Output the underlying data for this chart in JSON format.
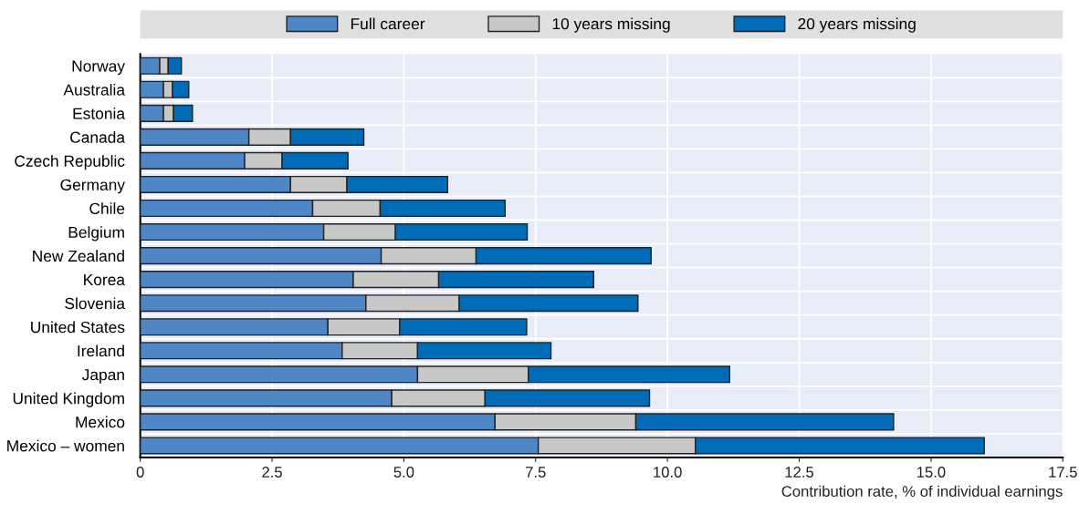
{
  "chart_data": {
    "type": "bar",
    "orientation": "horizontal",
    "stacked": true,
    "categories": [
      "Norway",
      "Australia",
      "Estonia",
      "Canada",
      "Czech Republic",
      "Germany",
      "Chile",
      "Belgium",
      "New Zealand",
      "Korea",
      "Slovenia",
      "United States",
      "Ireland",
      "Japan",
      "United Kingdom",
      "Mexico",
      "Mexico – women"
    ],
    "series": [
      {
        "name": "Full career",
        "color": "#4f86c6",
        "values": [
          0.37,
          0.44,
          0.44,
          2.06,
          1.98,
          2.85,
          3.27,
          3.48,
          4.57,
          4.04,
          4.28,
          3.56,
          3.83,
          5.26,
          4.77,
          6.73,
          7.55
        ]
      },
      {
        "name": "10 years missing",
        "color": "#c8c8c8",
        "values": [
          0.16,
          0.17,
          0.19,
          0.79,
          0.71,
          1.07,
          1.28,
          1.36,
          1.8,
          1.62,
          1.77,
          1.36,
          1.43,
          2.1,
          1.77,
          2.67,
          2.98
        ]
      },
      {
        "name": "20 years missing",
        "color": "#006bb6",
        "values": [
          0.25,
          0.31,
          0.36,
          1.39,
          1.25,
          1.91,
          2.37,
          2.5,
          3.32,
          2.94,
          3.39,
          2.41,
          2.53,
          3.82,
          3.12,
          4.89,
          5.48
        ]
      }
    ],
    "xlabel": "Contribution rate, % of individual earnings",
    "xlim": [
      0,
      17.5
    ],
    "xticks": [
      0,
      2.5,
      {
        "value": 5,
        "label": "5.0"
      },
      7.5,
      {
        "value": 10,
        "label": "10.0"
      },
      12.5,
      {
        "value": 15,
        "label": "15.0"
      },
      17.5
    ],
    "grid": "x",
    "legend": "top"
  }
}
